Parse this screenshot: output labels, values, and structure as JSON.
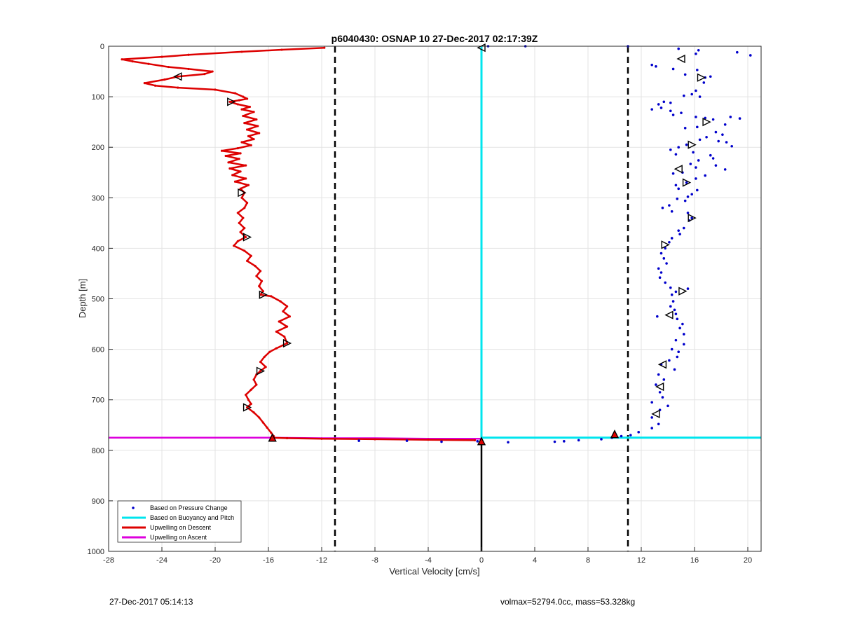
{
  "footer": {
    "timestamp": "27-Dec-2017 05:14:13",
    "specs": "volmax=52794.0cc, mass=53.328kg"
  },
  "chart_data": {
    "type": "scatter",
    "title": "p6040430: OSNAP 10 27-Dec-2017 02:17:39Z",
    "xlabel": "Vertical Velocity [cm/s]",
    "ylabel": "Depth [m]",
    "xlim": [
      -28,
      21
    ],
    "ylim": [
      0,
      1000
    ],
    "y_reversed": true,
    "x_ticks": [
      -28,
      -24,
      -20,
      -16,
      -12,
      -8,
      -4,
      0,
      4,
      8,
      12,
      16,
      20
    ],
    "y_ticks": [
      0,
      100,
      200,
      300,
      400,
      500,
      600,
      700,
      800,
      900,
      1000
    ],
    "grid": true,
    "legend_position": "bottom-left",
    "colors": {
      "pressure": "#0000cc",
      "buoyancy": "#00e5ee",
      "descent": "#dd0000",
      "ascent": "#dd00dd",
      "reference": "#000000"
    },
    "reference_lines": [
      {
        "x": -11,
        "style": "dashed"
      },
      {
        "x": 11,
        "style": "dashed"
      },
      {
        "x": 0,
        "y_from": 780,
        "y_to": 1000,
        "style": "solid"
      }
    ],
    "series": [
      {
        "name": "Based on Pressure Change",
        "type": "scatter",
        "points": [
          [
            0.5,
            0
          ],
          [
            3.3,
            0
          ],
          [
            11,
            0
          ],
          [
            12.8,
            37
          ],
          [
            13.1,
            40
          ],
          [
            14.8,
            5
          ],
          [
            16.3,
            8
          ],
          [
            16.1,
            15
          ],
          [
            19.2,
            12
          ],
          [
            20.2,
            18
          ],
          [
            14.4,
            45
          ],
          [
            16.2,
            47
          ],
          [
            15.3,
            56
          ],
          [
            16.8,
            62
          ],
          [
            17.2,
            60
          ],
          [
            16.7,
            72
          ],
          [
            16.1,
            88
          ],
          [
            15.8,
            95
          ],
          [
            15.2,
            98
          ],
          [
            16.4,
            100
          ],
          [
            13.7,
            110
          ],
          [
            13.3,
            115
          ],
          [
            14.2,
            112
          ],
          [
            13.5,
            122
          ],
          [
            12.8,
            125
          ],
          [
            14.2,
            128
          ],
          [
            15,
            132
          ],
          [
            14.4,
            136
          ],
          [
            16.1,
            140
          ],
          [
            16.8,
            142
          ],
          [
            17.4,
            145
          ],
          [
            18.7,
            140
          ],
          [
            19.4,
            143
          ],
          [
            18.3,
            155
          ],
          [
            16.2,
            160
          ],
          [
            15.3,
            162
          ],
          [
            17.6,
            170
          ],
          [
            18.1,
            175
          ],
          [
            16.9,
            180
          ],
          [
            16.4,
            185
          ],
          [
            17.8,
            188
          ],
          [
            18.4,
            190
          ],
          [
            18.8,
            198
          ],
          [
            15.4,
            195
          ],
          [
            14.8,
            200
          ],
          [
            14.2,
            205
          ],
          [
            14.6,
            214
          ],
          [
            15.9,
            210
          ],
          [
            17.2,
            216
          ],
          [
            17.4,
            222
          ],
          [
            16.3,
            226
          ],
          [
            15.7,
            233
          ],
          [
            16.1,
            240
          ],
          [
            17.6,
            236
          ],
          [
            18.3,
            244
          ],
          [
            15.1,
            250
          ],
          [
            14.4,
            252
          ],
          [
            16.8,
            256
          ],
          [
            16.1,
            262
          ],
          [
            15.4,
            270
          ],
          [
            14.6,
            275
          ],
          [
            14.8,
            282
          ],
          [
            16.2,
            285
          ],
          [
            15.8,
            293
          ],
          [
            15.5,
            298
          ],
          [
            14.7,
            302
          ],
          [
            15.3,
            306
          ],
          [
            14.1,
            315
          ],
          [
            13.6,
            320
          ],
          [
            14.3,
            327
          ],
          [
            15.5,
            330
          ],
          [
            15.8,
            340
          ],
          [
            15.6,
            345
          ],
          [
            15.2,
            360
          ],
          [
            14.8,
            365
          ],
          [
            14.9,
            372
          ],
          [
            14.3,
            380
          ],
          [
            14.1,
            388
          ],
          [
            13.8,
            400
          ],
          [
            13.5,
            410
          ],
          [
            13.7,
            420
          ],
          [
            13.9,
            430
          ],
          [
            13.3,
            440
          ],
          [
            13.5,
            448
          ],
          [
            13.4,
            458
          ],
          [
            13.8,
            468
          ],
          [
            14.2,
            478
          ],
          [
            14.6,
            486
          ],
          [
            15.5,
            480
          ],
          [
            14.3,
            492
          ],
          [
            14.4,
            505
          ],
          [
            14.2,
            515
          ],
          [
            14.5,
            522
          ],
          [
            14.6,
            530
          ],
          [
            13.2,
            535
          ],
          [
            14.7,
            540
          ],
          [
            15.1,
            550
          ],
          [
            14.9,
            558
          ],
          [
            15.2,
            570
          ],
          [
            14.6,
            582
          ],
          [
            15.2,
            590
          ],
          [
            14.3,
            600
          ],
          [
            14.8,
            605
          ],
          [
            14.7,
            615
          ],
          [
            14.1,
            622
          ],
          [
            13.5,
            630
          ],
          [
            14.5,
            640
          ],
          [
            13.3,
            650
          ],
          [
            13.7,
            660
          ],
          [
            13.1,
            670
          ],
          [
            13.4,
            685
          ],
          [
            13.6,
            695
          ],
          [
            12.8,
            705
          ],
          [
            14.0,
            712
          ],
          [
            13.4,
            720
          ],
          [
            12.8,
            735
          ],
          [
            13.3,
            748
          ],
          [
            12.8,
            756
          ],
          [
            11.8,
            764
          ],
          [
            11.2,
            770
          ],
          [
            10.5,
            772
          ],
          [
            9.8,
            775
          ],
          [
            9.0,
            778
          ],
          [
            7.3,
            780
          ],
          [
            6.2,
            782
          ],
          [
            5.5,
            783
          ],
          [
            2.0,
            784
          ],
          [
            -0.3,
            782
          ],
          [
            -3.0,
            783
          ],
          [
            -5.6,
            781
          ],
          [
            -9.2,
            781
          ],
          [
            -0.05,
            783
          ]
        ]
      },
      {
        "name": "Based on Buoyancy and Pitch",
        "type": "line",
        "points": [
          [
            0,
            0
          ],
          [
            0,
            100
          ],
          [
            0,
            300
          ],
          [
            0,
            500
          ],
          [
            0,
            700
          ],
          [
            0,
            775
          ],
          [
            4,
            775
          ],
          [
            8,
            775
          ],
          [
            12,
            775
          ],
          [
            16,
            775
          ],
          [
            21,
            775
          ]
        ]
      },
      {
        "name": "Upwelling on Descent",
        "type": "line",
        "points": [
          [
            -11.8,
            3
          ],
          [
            -15,
            7
          ],
          [
            -18,
            11
          ],
          [
            -22,
            17
          ],
          [
            -24,
            21
          ],
          [
            -27,
            26
          ],
          [
            -26.2,
            30
          ],
          [
            -25,
            35
          ],
          [
            -23.5,
            41
          ],
          [
            -22,
            45
          ],
          [
            -20.2,
            50
          ],
          [
            -20.8,
            55
          ],
          [
            -22.8,
            60
          ],
          [
            -23.8,
            66
          ],
          [
            -25.3,
            73
          ],
          [
            -24.5,
            78
          ],
          [
            -22.8,
            82
          ],
          [
            -20,
            86
          ],
          [
            -18.5,
            93
          ],
          [
            -17.9,
            100
          ],
          [
            -17.6,
            104
          ],
          [
            -18.2,
            107
          ],
          [
            -18.9,
            110
          ],
          [
            -18.3,
            115
          ],
          [
            -17.4,
            120
          ],
          [
            -18,
            125
          ],
          [
            -17.1,
            130
          ],
          [
            -17.9,
            138
          ],
          [
            -16.9,
            145
          ],
          [
            -17.8,
            152
          ],
          [
            -16.8,
            158
          ],
          [
            -17.6,
            165
          ],
          [
            -16.7,
            172
          ],
          [
            -17.5,
            178
          ],
          [
            -17.1,
            184
          ],
          [
            -18,
            190
          ],
          [
            -17.3,
            196
          ],
          [
            -18.3,
            202
          ],
          [
            -19.5,
            207
          ],
          [
            -18.1,
            212
          ],
          [
            -19.2,
            217
          ],
          [
            -18.2,
            223
          ],
          [
            -19,
            230
          ],
          [
            -17.7,
            236
          ],
          [
            -18.9,
            242
          ],
          [
            -18.1,
            248
          ],
          [
            -18.7,
            255
          ],
          [
            -17.7,
            262
          ],
          [
            -18.5,
            268
          ],
          [
            -17.5,
            275
          ],
          [
            -18.1,
            282
          ],
          [
            -17.8,
            290
          ],
          [
            -18,
            300
          ],
          [
            -17.6,
            310
          ],
          [
            -17.8,
            320
          ],
          [
            -18.3,
            330
          ],
          [
            -17.9,
            340
          ],
          [
            -18.2,
            350
          ],
          [
            -17.8,
            360
          ],
          [
            -18.1,
            368
          ],
          [
            -17.7,
            378
          ],
          [
            -18.3,
            386
          ],
          [
            -18.6,
            395
          ],
          [
            -17.8,
            405
          ],
          [
            -17.3,
            415
          ],
          [
            -17.6,
            425
          ],
          [
            -17,
            435
          ],
          [
            -16.6,
            445
          ],
          [
            -16.9,
            455
          ],
          [
            -16.5,
            465
          ],
          [
            -16.7,
            475
          ],
          [
            -16.4,
            485
          ],
          [
            -16.6,
            492
          ],
          [
            -15.8,
            495
          ],
          [
            -15.1,
            505
          ],
          [
            -14.6,
            515
          ],
          [
            -14.9,
            525
          ],
          [
            -14.4,
            535
          ],
          [
            -15.2,
            545
          ],
          [
            -14.6,
            555
          ],
          [
            -15.4,
            565
          ],
          [
            -14.8,
            575
          ],
          [
            -14.6,
            588
          ],
          [
            -15.4,
            598
          ],
          [
            -15.9,
            605
          ],
          [
            -16.3,
            615
          ],
          [
            -16.6,
            625
          ],
          [
            -16.2,
            635
          ],
          [
            -16.6,
            643
          ],
          [
            -16.9,
            650
          ],
          [
            -17.1,
            660
          ],
          [
            -16.9,
            670
          ],
          [
            -17.3,
            680
          ],
          [
            -17.7,
            690
          ],
          [
            -17.5,
            700
          ],
          [
            -17.3,
            708
          ],
          [
            -17.6,
            715
          ],
          [
            -17.1,
            725
          ],
          [
            -16.7,
            735
          ],
          [
            -16.4,
            745
          ],
          [
            -16.1,
            755
          ],
          [
            -15.8,
            765
          ],
          [
            -15.6,
            772
          ],
          [
            -15.8,
            775
          ],
          [
            -14.6,
            776
          ],
          [
            -12,
            777
          ],
          [
            -8,
            778
          ],
          [
            -4,
            779
          ],
          [
            -0.5,
            780
          ]
        ]
      },
      {
        "name": "Upwelling on Ascent",
        "type": "line",
        "points": [
          [
            -28,
            775
          ],
          [
            -16,
            775
          ],
          [
            -12,
            776
          ],
          [
            -8,
            776
          ],
          [
            -4,
            777
          ],
          [
            0,
            777
          ],
          [
            0,
            780
          ]
        ]
      }
    ],
    "markers": {
      "descent": [
        [
          -22.8,
          60,
          "left"
        ],
        [
          -18.8,
          110,
          "right"
        ],
        [
          -18,
          290,
          "right"
        ],
        [
          -17.6,
          378,
          "right"
        ],
        [
          -16.4,
          492,
          "right"
        ],
        [
          -14.6,
          588,
          "right"
        ],
        [
          -16.6,
          643,
          "right"
        ],
        [
          -17.6,
          715,
          "right"
        ],
        [
          -15.7,
          775,
          "up"
        ],
        [
          0,
          3,
          "left"
        ],
        [
          0,
          782,
          "up"
        ],
        [
          10,
          768,
          "up"
        ]
      ],
      "ascent": [
        [
          15,
          25,
          "left"
        ],
        [
          16.5,
          62,
          "right"
        ],
        [
          16.9,
          150,
          "right"
        ],
        [
          15.8,
          195,
          "right"
        ],
        [
          14.8,
          243,
          "left"
        ],
        [
          15.4,
          270,
          "right"
        ],
        [
          15.8,
          340,
          "right"
        ],
        [
          13.8,
          393,
          "right"
        ],
        [
          15.1,
          485,
          "right"
        ],
        [
          14.1,
          532,
          "left"
        ],
        [
          13.6,
          630,
          "left"
        ],
        [
          13.4,
          674,
          "left"
        ],
        [
          13.1,
          728,
          "left"
        ]
      ]
    }
  }
}
